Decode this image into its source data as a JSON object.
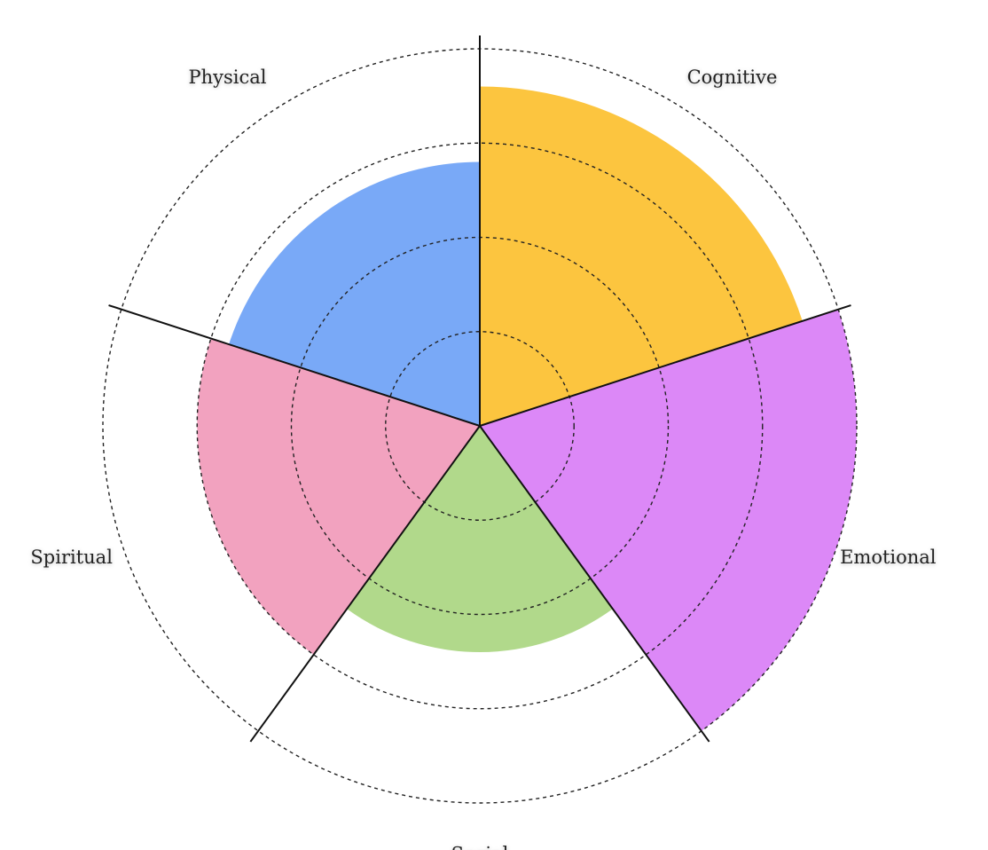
{
  "chart_data": {
    "type": "polar_area",
    "categories": [
      "Cognitive",
      "Emotional",
      "Social",
      "Spiritual",
      "Physical"
    ],
    "values": [
      3.6,
      4,
      2.4,
      3,
      2.8
    ],
    "colors": [
      "#fcc53f",
      "#dc88f7",
      "#b1d98b",
      "#f2a2bf",
      "#79a9f7"
    ],
    "rlim": [
      0,
      4
    ],
    "rticks": [
      1,
      2,
      3,
      4
    ],
    "grid": true
  }
}
